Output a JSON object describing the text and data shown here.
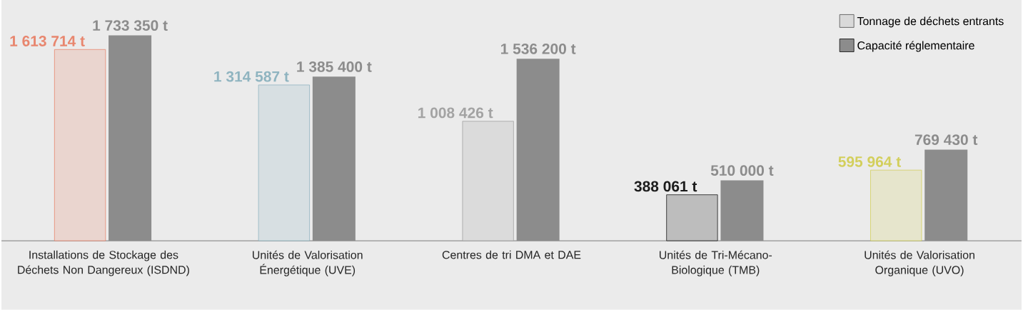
{
  "chart_data": {
    "type": "bar",
    "categories": [
      "Installations de Stockage des Déchets Non Dangereux (ISDND)",
      "Unités de Valorisation Énergétique (UVE)",
      "Centres de tri DMA et DAE",
      "Unités de Tri-Mécano-Biologique (TMB)",
      "Unités de Valorisation Organique (UVO)"
    ],
    "series": [
      {
        "name": "Tonnage de déchets entrants",
        "colors": [
          "#e8866e",
          "#8fb4c0",
          "#a3a3a3",
          "#1c1c1c",
          "#d3cf5c"
        ],
        "values": [
          1613714,
          1314587,
          1008426,
          388061,
          595964
        ],
        "value_labels": [
          "1 613 714 t",
          "1 314 587 t",
          "1 008 426 t",
          "388 061 t",
          "595 964 t"
        ]
      },
      {
        "name": "Capacité réglementaire",
        "color": "#8c8c8c",
        "values": [
          1733350,
          1385400,
          1536200,
          510000,
          769430
        ],
        "value_labels": [
          "1 733 350 t",
          "1 385 400 t",
          "1 536 200 t",
          "510 000 t",
          "769 430 t"
        ]
      }
    ],
    "legend": "top right"
  }
}
